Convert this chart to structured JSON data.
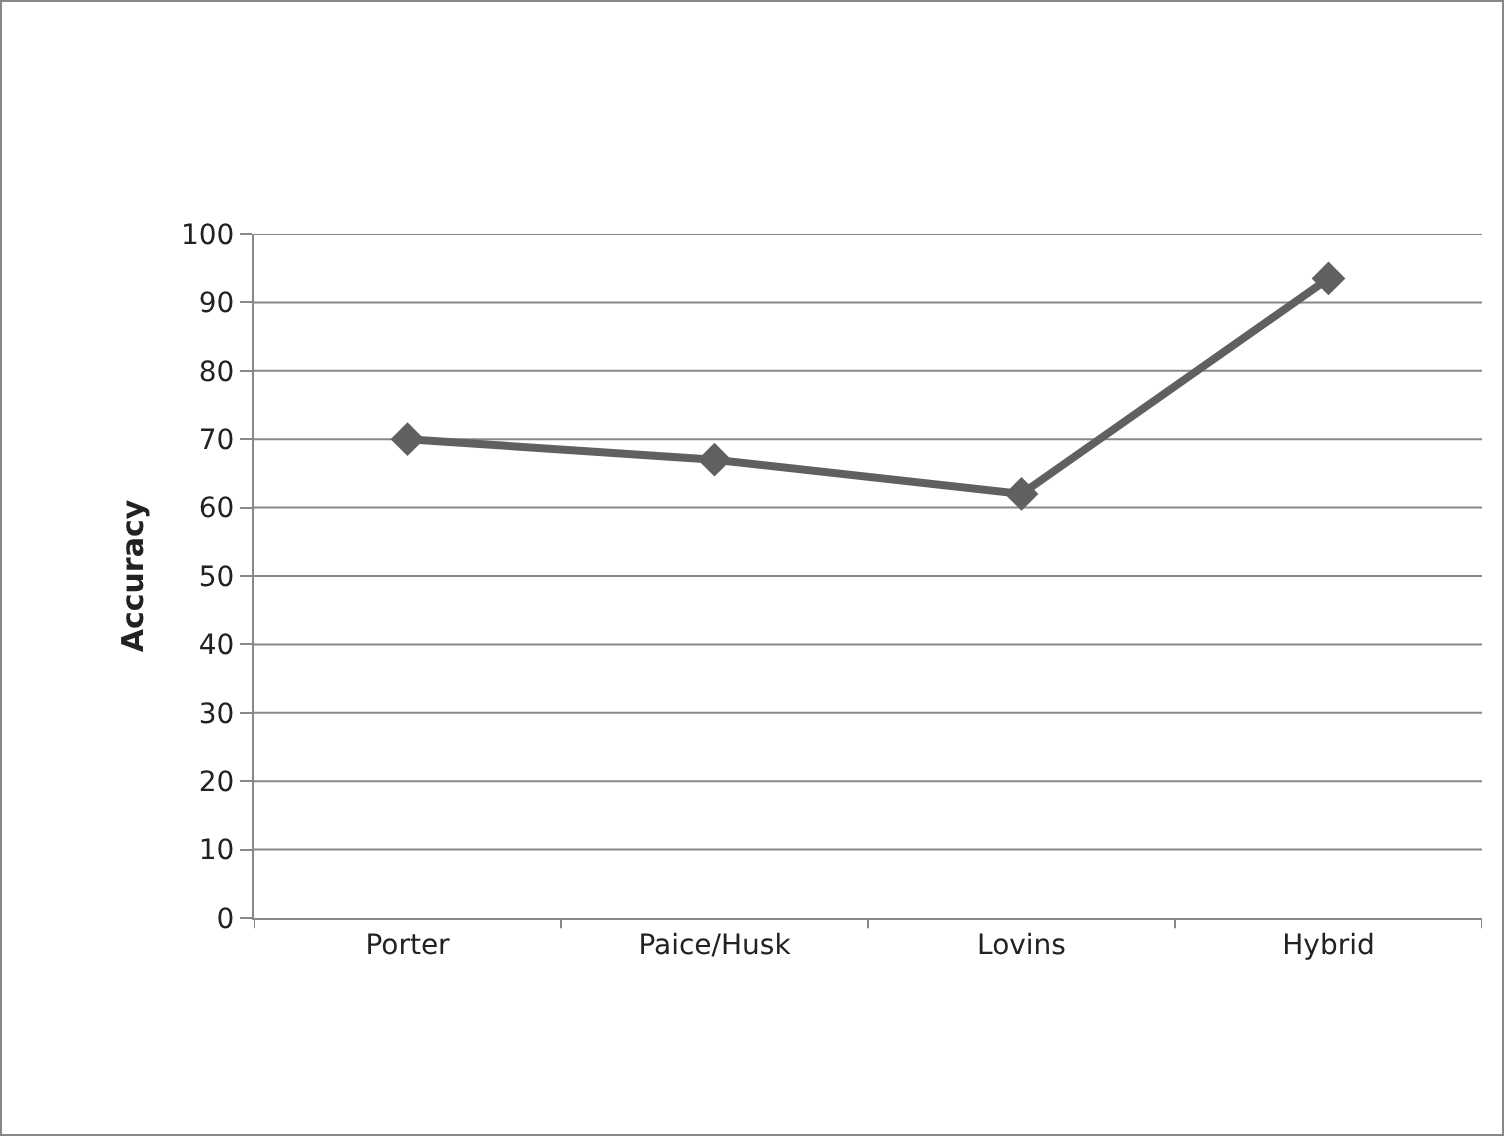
{
  "chart_data": {
    "type": "line",
    "ylabel": "Accuracy",
    "categories": [
      "Porter",
      "Paice/Husk",
      "Lovins",
      "Hybrid"
    ],
    "series": [
      {
        "color": "#606060",
        "values": [
          70,
          67,
          62,
          93.5
        ]
      }
    ],
    "ylim": [
      0,
      100
    ],
    "yticks": [
      0,
      10,
      20,
      30,
      40,
      50,
      60,
      70,
      80,
      90,
      100
    ],
    "grid": "y",
    "marker": "diamond",
    "line_style": "solid"
  }
}
